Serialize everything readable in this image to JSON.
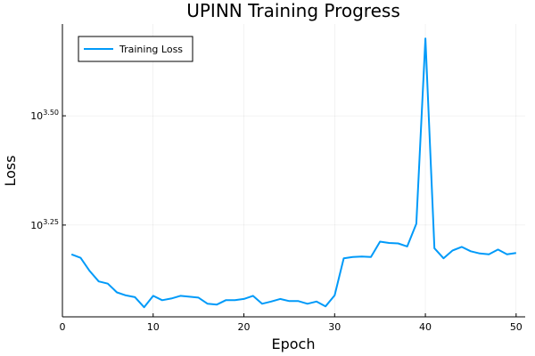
{
  "chart_data": {
    "type": "line",
    "title": "UPINN Training Progress",
    "xlabel": "Epoch",
    "ylabel": "Loss",
    "xlim": [
      0,
      51
    ],
    "xticks": [
      0,
      10,
      20,
      30,
      40,
      50
    ],
    "ylog10lim": [
      3.04,
      3.71
    ],
    "yscale": "log10",
    "yticks": [
      {
        "base": "10",
        "exp": "3.25",
        "log10": 3.25
      },
      {
        "base": "10",
        "exp": "3.50",
        "log10": 3.5
      }
    ],
    "grid": true,
    "legend_position": "top-left",
    "series": [
      {
        "name": "Training Loss",
        "color": "#009af9",
        "x": [
          1,
          2,
          3,
          4,
          5,
          6,
          7,
          8,
          9,
          10,
          11,
          12,
          13,
          14,
          15,
          16,
          17,
          18,
          19,
          20,
          21,
          22,
          23,
          24,
          25,
          26,
          27,
          28,
          29,
          30,
          31,
          32,
          33,
          34,
          35,
          36,
          37,
          38,
          39,
          40,
          41,
          42,
          43,
          44,
          45,
          46,
          47,
          48,
          49,
          50
        ],
        "log10y": [
          3.183,
          3.175,
          3.145,
          3.121,
          3.116,
          3.096,
          3.089,
          3.085,
          3.062,
          3.088,
          3.078,
          3.082,
          3.088,
          3.086,
          3.084,
          3.07,
          3.068,
          3.078,
          3.078,
          3.081,
          3.088,
          3.07,
          3.075,
          3.081,
          3.076,
          3.076,
          3.07,
          3.075,
          3.064,
          3.089,
          3.174,
          3.177,
          3.178,
          3.177,
          3.212,
          3.209,
          3.208,
          3.201,
          3.253,
          3.677,
          3.197,
          3.174,
          3.192,
          3.2,
          3.19,
          3.185,
          3.183,
          3.194,
          3.183,
          3.186
        ]
      }
    ]
  }
}
